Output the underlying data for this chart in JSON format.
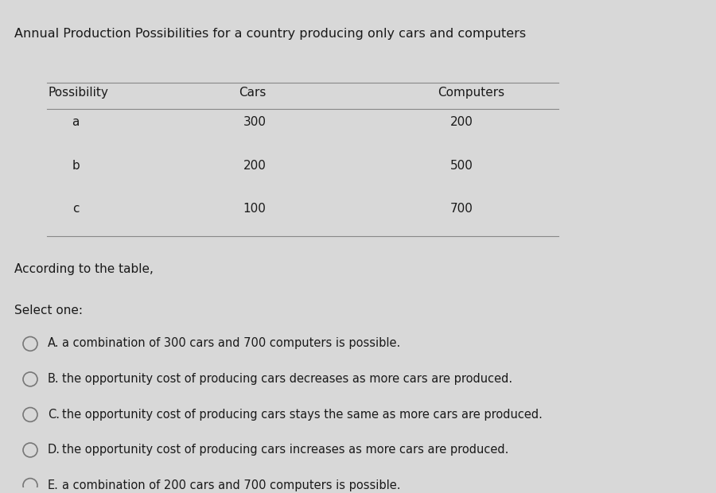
{
  "title": "Annual Production Possibilities for a country producing only cars and computers",
  "table_headers": [
    "Possibility",
    "Cars",
    "Computers"
  ],
  "table_rows": [
    [
      "a",
      "300",
      "200"
    ],
    [
      "b",
      "200",
      "500"
    ],
    [
      "c",
      "100",
      "700"
    ]
  ],
  "question": "According to the table,",
  "select_label": "Select one:",
  "options": [
    [
      "A.",
      "a combination of 300 cars and 700 computers is possible."
    ],
    [
      "B.",
      "the opportunity cost of producing cars decreases as more cars are produced."
    ],
    [
      "C.",
      "the opportunity cost of producing cars stays the same as more cars are produced."
    ],
    [
      "D.",
      "the opportunity cost of producing cars increases as more cars are produced."
    ],
    [
      "E.",
      "a combination of 200 cars and 700 computers is possible."
    ]
  ],
  "bg_color": "#d8d8d8",
  "text_color": "#1a1a1a",
  "title_fontsize": 11.5,
  "header_fontsize": 11,
  "row_fontsize": 11,
  "question_fontsize": 11,
  "option_fontsize": 10.5
}
